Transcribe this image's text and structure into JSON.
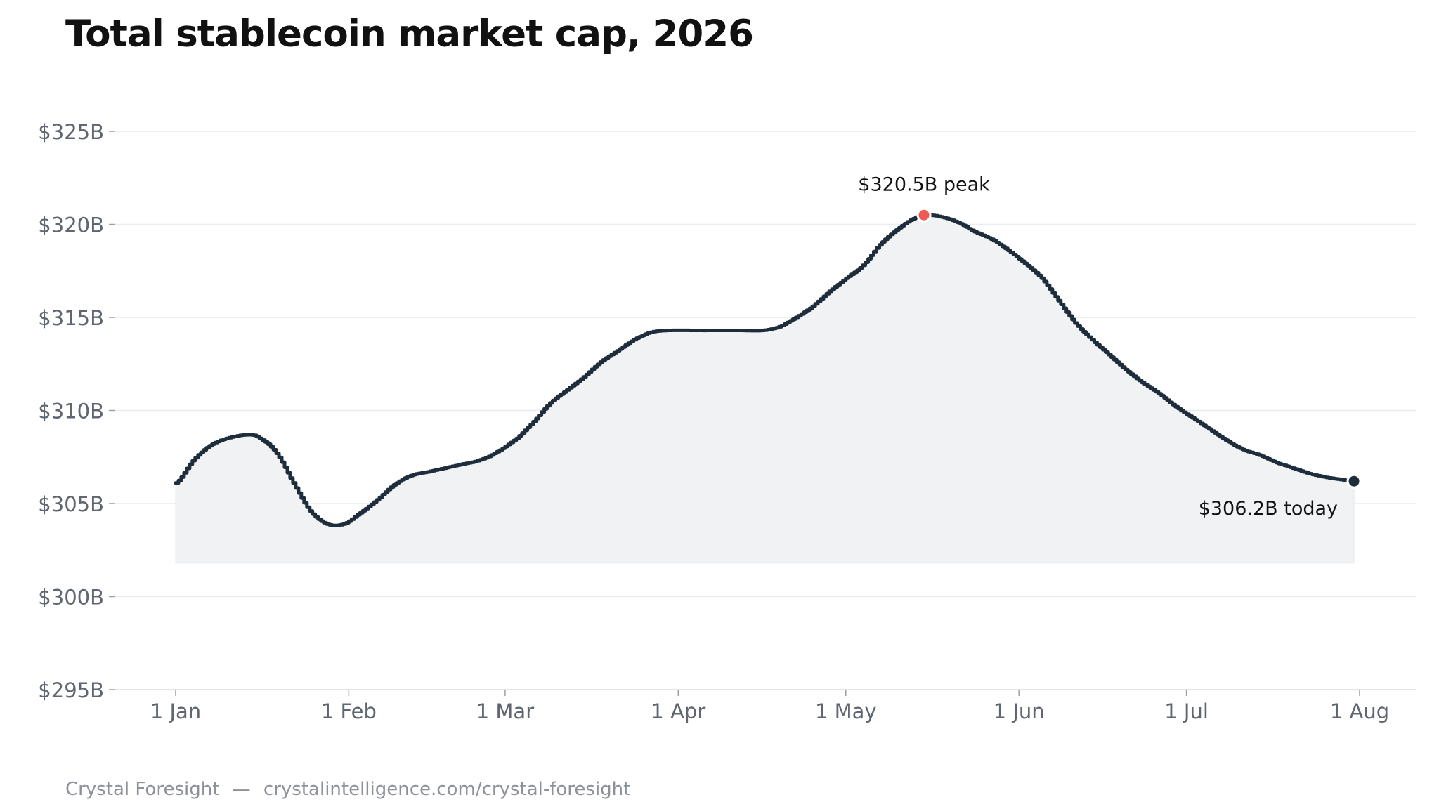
{
  "title": "Total stablecoin market cap, 2026",
  "footer": {
    "source": "Crystal Foresight",
    "separator": "—",
    "url": "crystalintelligence.com/crystal-foresight"
  },
  "colors": {
    "line": "#1e2d3b",
    "area_fill": "#f1f2f4",
    "peak_marker": "#f05a55",
    "today_marker": "#1e2d3b",
    "grid": "#ebecee",
    "tick_text": "#5f6672"
  },
  "chart_data": {
    "type": "area",
    "title": "Total stablecoin market cap, 2026",
    "xlabel": "",
    "ylabel": "",
    "grid": true,
    "x_scale": "date",
    "x_ticks": [
      {
        "date": "2026-01-01",
        "label": "1 Jan"
      },
      {
        "date": "2026-02-01",
        "label": "1 Feb"
      },
      {
        "date": "2026-03-01",
        "label": "1 Mar"
      },
      {
        "date": "2026-04-01",
        "label": "1 Apr"
      },
      {
        "date": "2026-05-01",
        "label": "1 May"
      },
      {
        "date": "2026-06-01",
        "label": "1 Jun"
      },
      {
        "date": "2026-07-01",
        "label": "1 Jul"
      },
      {
        "date": "2026-08-01",
        "label": "1 Aug"
      }
    ],
    "y_ticks": [
      {
        "value": 295,
        "label": "$295B"
      },
      {
        "value": 300,
        "label": "$300B"
      },
      {
        "value": 305,
        "label": "$305B"
      },
      {
        "value": 310,
        "label": "$310B"
      },
      {
        "value": 315,
        "label": "$315B"
      },
      {
        "value": 320,
        "label": "$320B"
      },
      {
        "value": 325,
        "label": "$325B"
      }
    ],
    "ylim": [
      295,
      325
    ],
    "xlim": [
      "2026-01-01",
      "2026-08-01"
    ],
    "area_baseline": 301.8,
    "series": [
      {
        "points": [
          [
            "2026-01-01",
            306.1
          ],
          [
            "2026-01-04",
            307.3
          ],
          [
            "2026-01-07",
            308.1
          ],
          [
            "2026-01-10",
            308.5
          ],
          [
            "2026-01-14",
            308.7
          ],
          [
            "2026-01-16",
            308.5
          ],
          [
            "2026-01-19",
            307.7
          ],
          [
            "2026-01-22",
            306.1
          ],
          [
            "2026-01-25",
            304.6
          ],
          [
            "2026-01-28",
            303.9
          ],
          [
            "2026-01-31",
            303.9
          ],
          [
            "2026-02-03",
            304.5
          ],
          [
            "2026-02-06",
            305.2
          ],
          [
            "2026-02-09",
            306.0
          ],
          [
            "2026-02-12",
            306.5
          ],
          [
            "2026-02-15",
            306.7
          ],
          [
            "2026-02-18",
            306.9
          ],
          [
            "2026-02-21",
            307.1
          ],
          [
            "2026-02-24",
            307.3
          ],
          [
            "2026-02-27",
            307.7
          ],
          [
            "2026-03-03",
            308.5
          ],
          [
            "2026-03-06",
            309.4
          ],
          [
            "2026-03-09",
            310.4
          ],
          [
            "2026-03-12",
            311.1
          ],
          [
            "2026-03-15",
            311.8
          ],
          [
            "2026-03-18",
            312.6
          ],
          [
            "2026-03-21",
            313.2
          ],
          [
            "2026-03-24",
            313.8
          ],
          [
            "2026-03-27",
            314.2
          ],
          [
            "2026-03-30",
            314.3
          ],
          [
            "2026-04-05",
            314.3
          ],
          [
            "2026-04-12",
            314.3
          ],
          [
            "2026-04-16",
            314.3
          ],
          [
            "2026-04-19",
            314.5
          ],
          [
            "2026-04-22",
            315.0
          ],
          [
            "2026-04-25",
            315.6
          ],
          [
            "2026-04-28",
            316.4
          ],
          [
            "2026-05-01",
            317.1
          ],
          [
            "2026-05-04",
            317.8
          ],
          [
            "2026-05-07",
            318.9
          ],
          [
            "2026-05-10",
            319.7
          ],
          [
            "2026-05-13",
            320.3
          ],
          [
            "2026-05-15",
            320.5
          ],
          [
            "2026-05-18",
            320.4
          ],
          [
            "2026-05-21",
            320.1
          ],
          [
            "2026-05-24",
            319.6
          ],
          [
            "2026-05-27",
            319.2
          ],
          [
            "2026-05-30",
            318.6
          ],
          [
            "2026-06-02",
            317.9
          ],
          [
            "2026-06-05",
            317.1
          ],
          [
            "2026-06-08",
            315.9
          ],
          [
            "2026-06-11",
            314.7
          ],
          [
            "2026-06-14",
            313.8
          ],
          [
            "2026-06-17",
            313.0
          ],
          [
            "2026-06-20",
            312.2
          ],
          [
            "2026-06-23",
            311.5
          ],
          [
            "2026-06-26",
            310.9
          ],
          [
            "2026-06-29",
            310.2
          ],
          [
            "2026-07-02",
            309.6
          ],
          [
            "2026-07-05",
            309.0
          ],
          [
            "2026-07-08",
            308.4
          ],
          [
            "2026-07-11",
            307.9
          ],
          [
            "2026-07-14",
            307.6
          ],
          [
            "2026-07-17",
            307.2
          ],
          [
            "2026-07-20",
            306.9
          ],
          [
            "2026-07-23",
            306.6
          ],
          [
            "2026-07-26",
            306.4
          ],
          [
            "2026-07-31",
            306.2
          ]
        ]
      }
    ],
    "annotations": [
      {
        "id": "peak",
        "date": "2026-05-15",
        "value": 320.5,
        "text": "$320.5B  peak",
        "marker": "peak_marker"
      },
      {
        "id": "today",
        "date": "2026-07-31",
        "value": 306.2,
        "text": "$306.2B  today",
        "marker": "today_marker"
      }
    ]
  }
}
